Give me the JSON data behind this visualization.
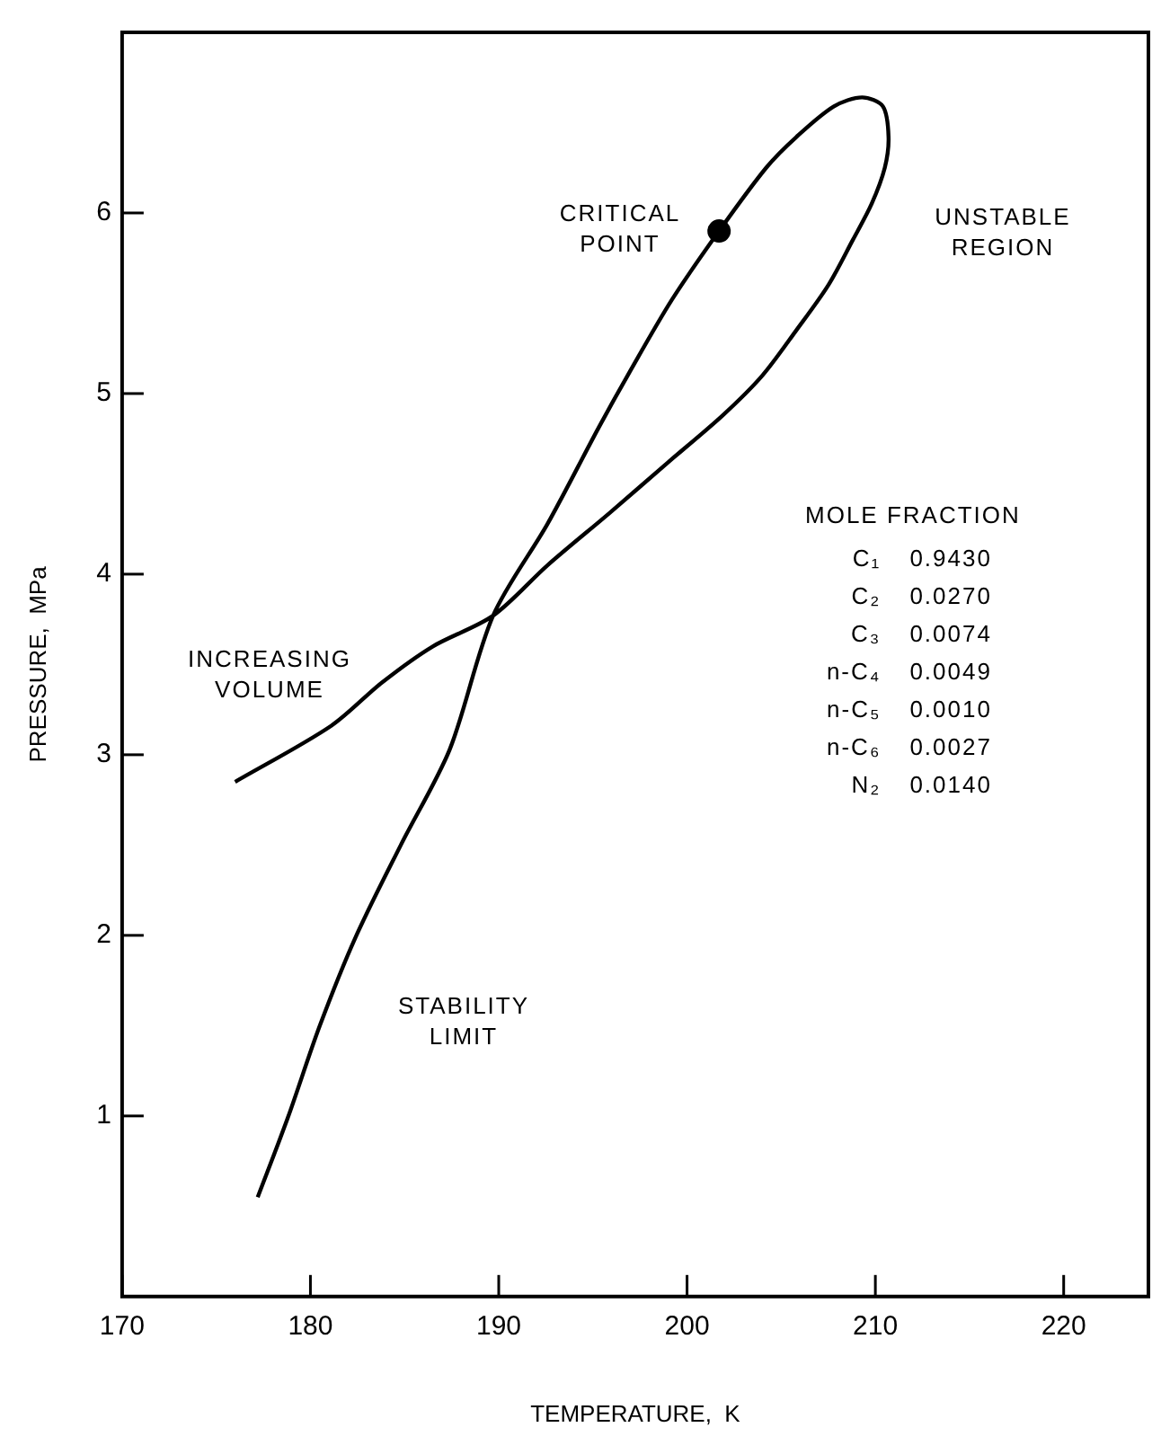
{
  "chart_data": {
    "type": "line",
    "xlabel": "TEMPERATURE,  K",
    "ylabel": "PRESSURE,  MPa",
    "xlim": [
      170,
      224.5
    ],
    "ylim": [
      0,
      7
    ],
    "xticks": [
      170,
      180,
      190,
      200,
      210,
      220
    ],
    "yticks": [
      1,
      2,
      3,
      4,
      5,
      6
    ],
    "grid": false,
    "legend": false,
    "series": [
      {
        "color": "#000000",
        "marker": "none",
        "x": [
          176.0,
          181.1,
          183.8,
          186.5,
          189.7,
          192.6,
          195.9,
          199.0,
          201.9,
          204.0,
          205.8,
          207.5,
          208.8,
          209.8,
          210.5,
          210.7,
          210.4,
          209.3,
          207.8,
          205.8,
          204.2,
          201.7,
          199.2,
          196.9,
          195.3,
          192.6,
          189.7,
          187.4,
          184.8,
          182.4,
          180.5,
          178.8,
          177.2
        ],
        "values": [
          2.85,
          3.16,
          3.4,
          3.6,
          3.77,
          4.05,
          4.34,
          4.62,
          4.88,
          5.1,
          5.35,
          5.6,
          5.85,
          6.05,
          6.25,
          6.42,
          6.59,
          6.64,
          6.59,
          6.42,
          6.25,
          5.9,
          5.52,
          5.11,
          4.81,
          4.28,
          3.77,
          3.03,
          2.5,
          1.99,
          1.5,
          0.99,
          0.55
        ]
      },
      {
        "type": "scatter",
        "color": "#000000",
        "marker": "circle",
        "x": [
          201.7
        ],
        "values": [
          5.9
        ]
      }
    ],
    "annotations": [
      "CRITICAL POINT",
      "UNSTABLE REGION",
      "INCREASING VOLUME",
      "STABILITY LIMIT",
      "MOLE FRACTION",
      "C₁ 0.9430",
      "C₂ 0.0270",
      "C₃ 0.0074",
      "n-C₄ 0.0049",
      "n-C₅ 0.0010",
      "n-C₆ 0.0027",
      "N₂ 0.0140"
    ]
  }
}
